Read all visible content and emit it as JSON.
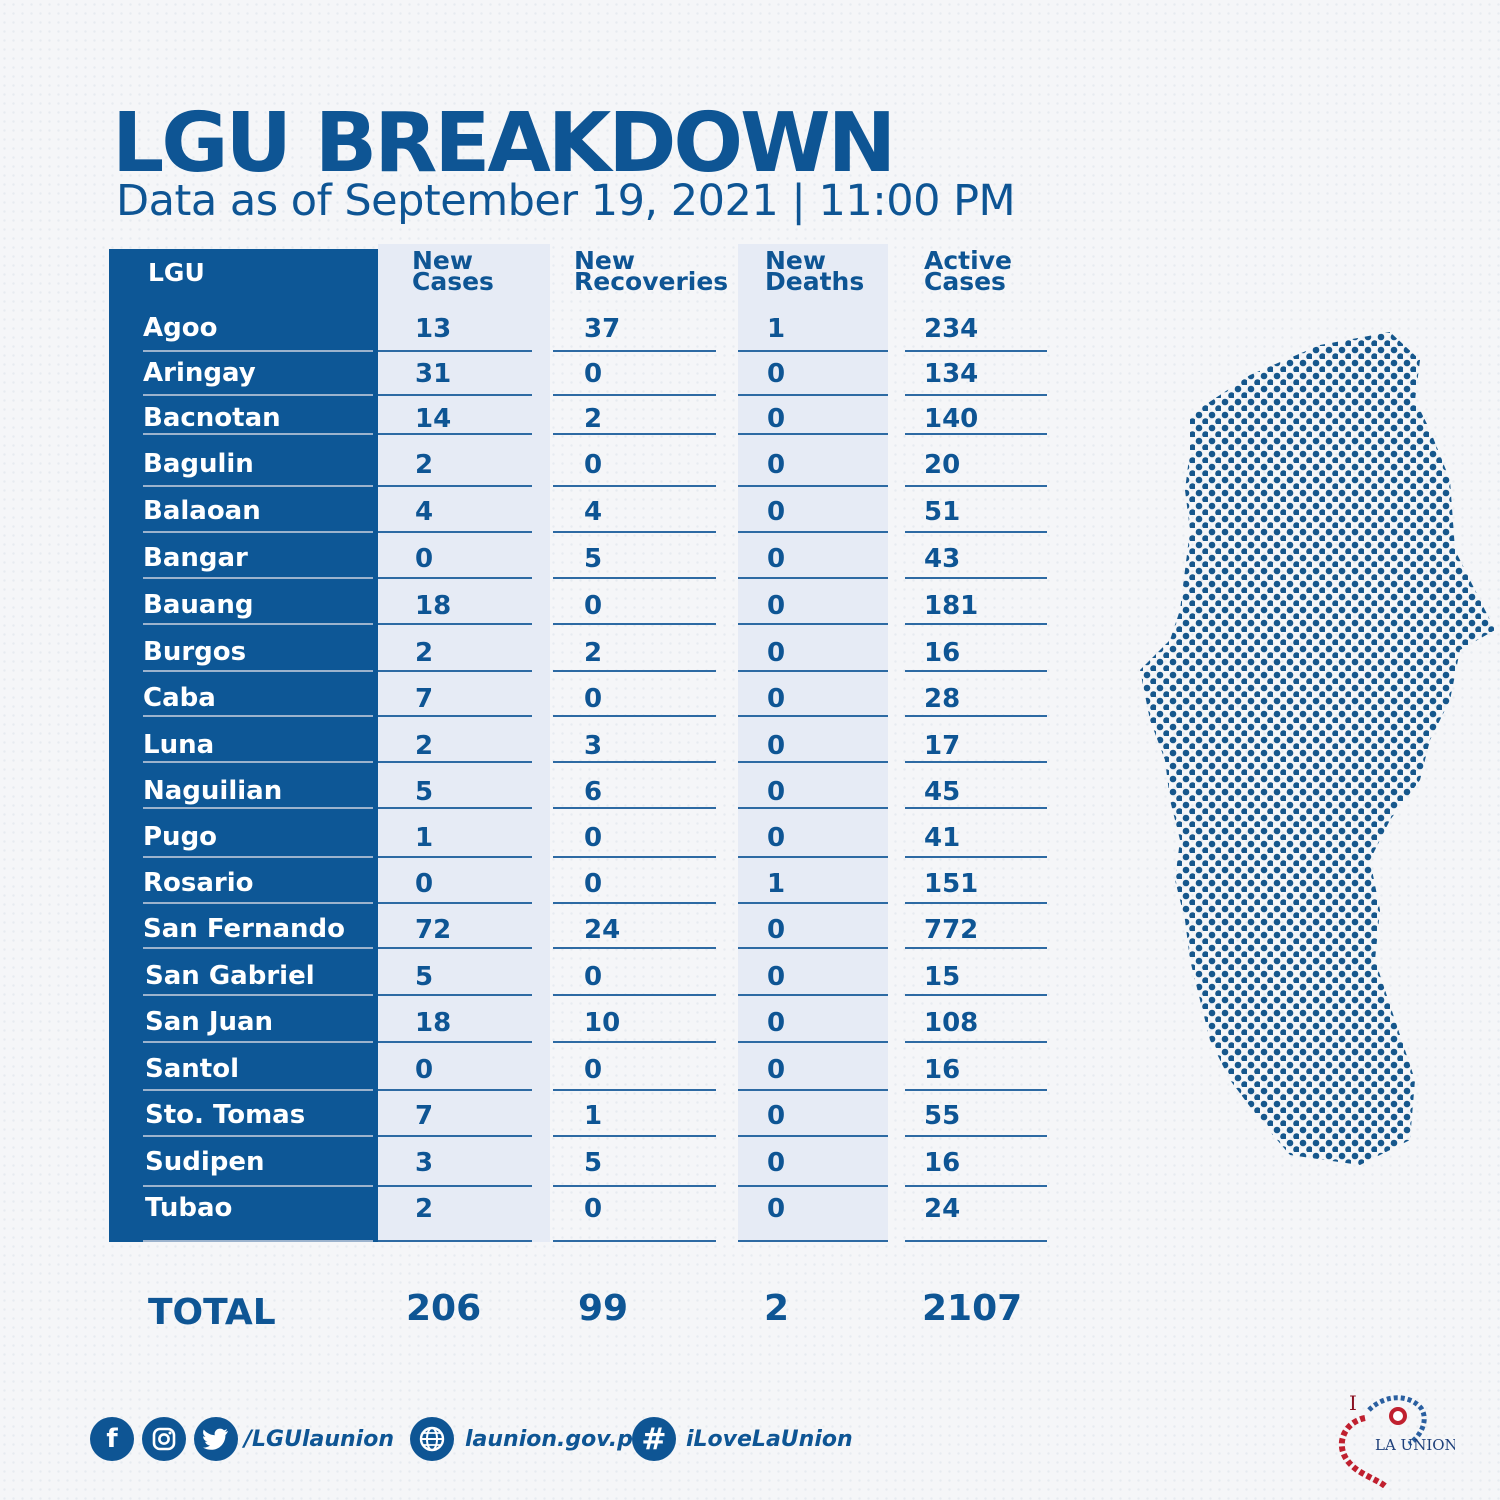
{
  "title": "LGU BREAKDOWN",
  "subtitle": "Data as of September 19, 2021 | 11:00 PM",
  "table": {
    "headers": {
      "lgu": "LGU",
      "new_cases": [
        "New",
        "Cases"
      ],
      "new_recoveries": [
        "New",
        "Recoveries"
      ],
      "new_deaths": [
        "New",
        "Deaths"
      ],
      "active_cases": [
        "Active",
        "Cases"
      ]
    },
    "rows": [
      {
        "lgu": "Agoo",
        "new_cases": "13",
        "new_recoveries": "37",
        "new_deaths": "1",
        "active_cases": "234"
      },
      {
        "lgu": "Aringay",
        "new_cases": "31",
        "new_recoveries": "0",
        "new_deaths": "0",
        "active_cases": "134"
      },
      {
        "lgu": "Bacnotan",
        "new_cases": "14",
        "new_recoveries": "2",
        "new_deaths": "0",
        "active_cases": "140"
      },
      {
        "lgu": "Bagulin",
        "new_cases": "2",
        "new_recoveries": "0",
        "new_deaths": "0",
        "active_cases": "20"
      },
      {
        "lgu": "Balaoan",
        "new_cases": "4",
        "new_recoveries": "4",
        "new_deaths": "0",
        "active_cases": "51"
      },
      {
        "lgu": "Bangar",
        "new_cases": "0",
        "new_recoveries": "5",
        "new_deaths": "0",
        "active_cases": "43"
      },
      {
        "lgu": "Bauang",
        "new_cases": "18",
        "new_recoveries": "0",
        "new_deaths": "0",
        "active_cases": "181"
      },
      {
        "lgu": "Burgos",
        "new_cases": "2",
        "new_recoveries": "2",
        "new_deaths": "0",
        "active_cases": "16"
      },
      {
        "lgu": "Caba",
        "new_cases": "7",
        "new_recoveries": "0",
        "new_deaths": "0",
        "active_cases": "28"
      },
      {
        "lgu": "Luna",
        "new_cases": "2",
        "new_recoveries": "3",
        "new_deaths": "0",
        "active_cases": "17"
      },
      {
        "lgu": "Naguilian",
        "new_cases": "5",
        "new_recoveries": "6",
        "new_deaths": "0",
        "active_cases": "45"
      },
      {
        "lgu": "Pugo",
        "new_cases": "1",
        "new_recoveries": "0",
        "new_deaths": "0",
        "active_cases": "41"
      },
      {
        "lgu": "Rosario",
        "new_cases": "0",
        "new_recoveries": "0",
        "new_deaths": "1",
        "active_cases": "151"
      },
      {
        "lgu": "San Fernando",
        "new_cases": "72",
        "new_recoveries": "24",
        "new_deaths": "0",
        "active_cases": "772"
      },
      {
        "lgu": "San Gabriel",
        "new_cases": "5",
        "new_recoveries": "0",
        "new_deaths": "0",
        "active_cases": "15"
      },
      {
        "lgu": "San Juan",
        "new_cases": "18",
        "new_recoveries": "10",
        "new_deaths": "0",
        "active_cases": "108"
      },
      {
        "lgu": "Santol",
        "new_cases": "0",
        "new_recoveries": "0",
        "new_deaths": "0",
        "active_cases": "16"
      },
      {
        "lgu": "Sto. Tomas",
        "new_cases": "7",
        "new_recoveries": "1",
        "new_deaths": "0",
        "active_cases": "55"
      },
      {
        "lgu": "Sudipen",
        "new_cases": "3",
        "new_recoveries": "5",
        "new_deaths": "0",
        "active_cases": "16"
      },
      {
        "lgu": "Tubao",
        "new_cases": "2",
        "new_recoveries": "0",
        "new_deaths": "0",
        "active_cases": "24"
      }
    ],
    "total": {
      "label": "TOTAL",
      "new_cases": "206",
      "new_recoveries": "99",
      "new_deaths": "2",
      "active_cases": "2107"
    }
  },
  "footer": {
    "social_handle": "/LGUlaunion",
    "website": "launion.gov.ph",
    "hashtag": "iLoveLaUnion",
    "icons": [
      "facebook-icon",
      "instagram-icon",
      "twitter-icon",
      "globe-icon",
      "hashtag-icon"
    ]
  },
  "logo": {
    "text": "I ♥ LA UNION"
  },
  "colors": {
    "brand": "#0e5594",
    "band": "#0d5796",
    "shade": "#e6ebf5"
  }
}
